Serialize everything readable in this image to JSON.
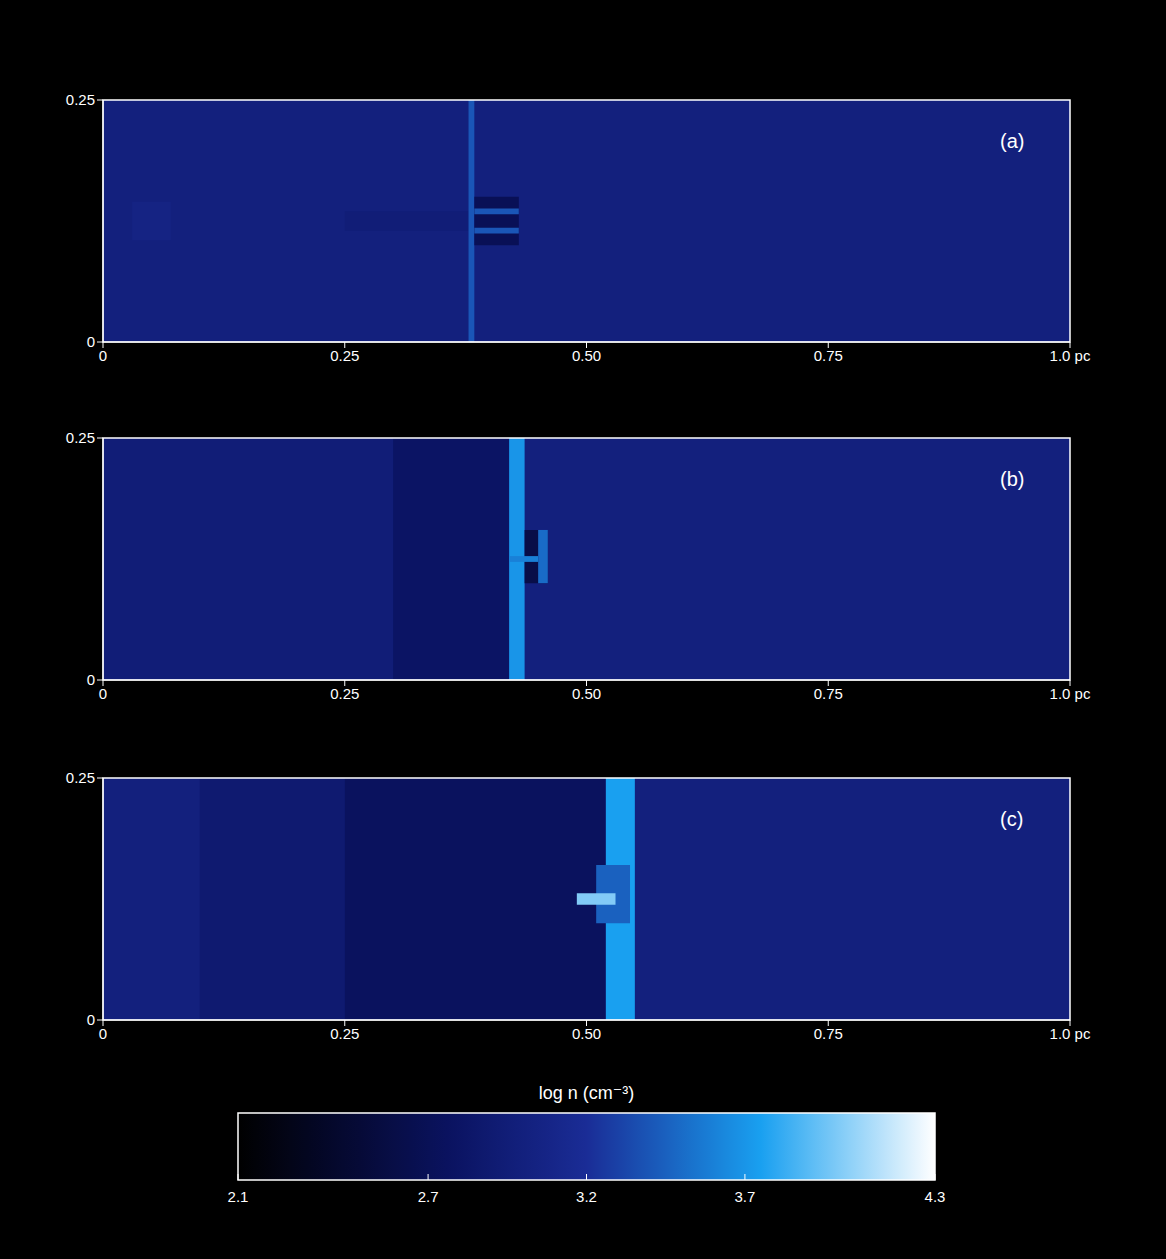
{
  "chart_data": [
    {
      "type": "heatmap",
      "label": "(a)",
      "xlim": [
        0,
        1
      ],
      "ylim": [
        0,
        0.25
      ],
      "xticks": [
        0,
        0.25,
        {
          "value": 0.5,
          "label": "0.50"
        },
        0.75,
        {
          "value": 1,
          "label": "1.0 pc"
        }
      ],
      "yticks": [
        0,
        0.25
      ],
      "regions": [
        {
          "x": [
            0,
            1
          ],
          "y": [
            0,
            0.25
          ],
          "log_n": 3.0
        },
        {
          "x": [
            0.03,
            0.07
          ],
          "y": [
            0.105,
            0.145
          ],
          "log_n": 3.05
        },
        {
          "x": [
            0.25,
            0.38
          ],
          "y": [
            0.115,
            0.135
          ],
          "log_n": 2.95
        },
        {
          "x": [
            0.378,
            0.384
          ],
          "y": [
            0,
            0.25
          ],
          "log_n": 3.4
        },
        {
          "x": [
            0.384,
            0.43
          ],
          "y": [
            0.1,
            0.15
          ],
          "log_n": 2.7
        },
        {
          "x": [
            0.384,
            0.43
          ],
          "y": [
            0.112,
            0.118
          ],
          "log_n": 3.4
        },
        {
          "x": [
            0.384,
            0.43
          ],
          "y": [
            0.132,
            0.138
          ],
          "log_n": 3.4
        }
      ]
    },
    {
      "type": "heatmap",
      "label": "(b)",
      "xlim": [
        0,
        1
      ],
      "ylim": [
        0,
        0.25
      ],
      "xticks": [
        0,
        0.25,
        {
          "value": 0.5,
          "label": "0.50"
        },
        0.75,
        {
          "value": 1,
          "label": "1.0 pc"
        }
      ],
      "yticks": [
        0,
        0.25
      ],
      "regions": [
        {
          "x": [
            0,
            1
          ],
          "y": [
            0,
            0.25
          ],
          "log_n": 3.0
        },
        {
          "x": [
            0,
            0.3
          ],
          "y": [
            0,
            0.25
          ],
          "log_n": 2.95
        },
        {
          "x": [
            0.3,
            0.42
          ],
          "y": [
            0,
            0.25
          ],
          "log_n": 2.8
        },
        {
          "x": [
            0.42,
            0.436
          ],
          "y": [
            0,
            0.25
          ],
          "log_n": 3.7
        },
        {
          "x": [
            0.436,
            0.46
          ],
          "y": [
            0.1,
            0.155
          ],
          "log_n": 2.6
        },
        {
          "x": [
            0.42,
            0.45
          ],
          "y": [
            0.122,
            0.128
          ],
          "log_n": 3.6
        },
        {
          "x": [
            0.45,
            0.46
          ],
          "y": [
            0.1,
            0.155
          ],
          "log_n": 3.5
        }
      ]
    },
    {
      "type": "heatmap",
      "label": "(c)",
      "xlim": [
        0,
        1
      ],
      "ylim": [
        0,
        0.25
      ],
      "xticks": [
        0,
        0.25,
        {
          "value": 0.5,
          "label": "0.50"
        },
        0.75,
        {
          "value": 1,
          "label": "1.0 pc"
        }
      ],
      "yticks": [
        0,
        0.25
      ],
      "regions": [
        {
          "x": [
            0,
            1
          ],
          "y": [
            0,
            0.25
          ],
          "log_n": 3.0
        },
        {
          "x": [
            0.1,
            0.25
          ],
          "y": [
            0,
            0.25
          ],
          "log_n": 2.9
        },
        {
          "x": [
            0.25,
            0.52
          ],
          "y": [
            0,
            0.25
          ],
          "log_n": 2.75
        },
        {
          "x": [
            0.52,
            0.55
          ],
          "y": [
            0,
            0.25
          ],
          "log_n": 3.75
        },
        {
          "x": [
            0.51,
            0.545
          ],
          "y": [
            0.1,
            0.16
          ],
          "log_n": 3.45
        },
        {
          "x": [
            0.49,
            0.53
          ],
          "y": [
            0.119,
            0.131
          ],
          "log_n": 4.0
        }
      ]
    }
  ],
  "colorbar": {
    "title": "log n (cm⁻³)",
    "range": [
      2.1,
      4.3
    ],
    "ticks": [
      2.1,
      2.7,
      3.2,
      3.7,
      4.3
    ]
  }
}
